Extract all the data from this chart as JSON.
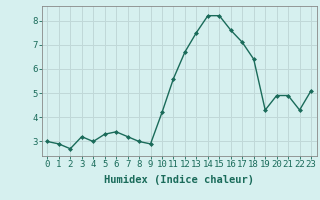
{
  "x": [
    0,
    1,
    2,
    3,
    4,
    5,
    6,
    7,
    8,
    9,
    10,
    11,
    12,
    13,
    14,
    15,
    16,
    17,
    18,
    19,
    20,
    21,
    22,
    23
  ],
  "y": [
    3.0,
    2.9,
    2.7,
    3.2,
    3.0,
    3.3,
    3.4,
    3.2,
    3.0,
    2.9,
    4.2,
    5.6,
    6.7,
    7.5,
    8.2,
    8.2,
    7.6,
    7.1,
    6.4,
    4.3,
    4.9,
    4.9,
    4.3,
    5.1
  ],
  "line_color": "#1a6b5a",
  "marker": "D",
  "marker_size": 2.0,
  "bg_color": "#d6f0ef",
  "grid_color": "#c0d8d8",
  "xlabel": "Humidex (Indice chaleur)",
  "ylim": [
    2.4,
    8.6
  ],
  "xlim": [
    -0.5,
    23.5
  ],
  "yticks": [
    3,
    4,
    5,
    6,
    7,
    8
  ],
  "xticks": [
    0,
    1,
    2,
    3,
    4,
    5,
    6,
    7,
    8,
    9,
    10,
    11,
    12,
    13,
    14,
    15,
    16,
    17,
    18,
    19,
    20,
    21,
    22,
    23
  ],
  "xlabel_fontsize": 7.5,
  "tick_fontsize": 6.5,
  "line_width": 1.0
}
